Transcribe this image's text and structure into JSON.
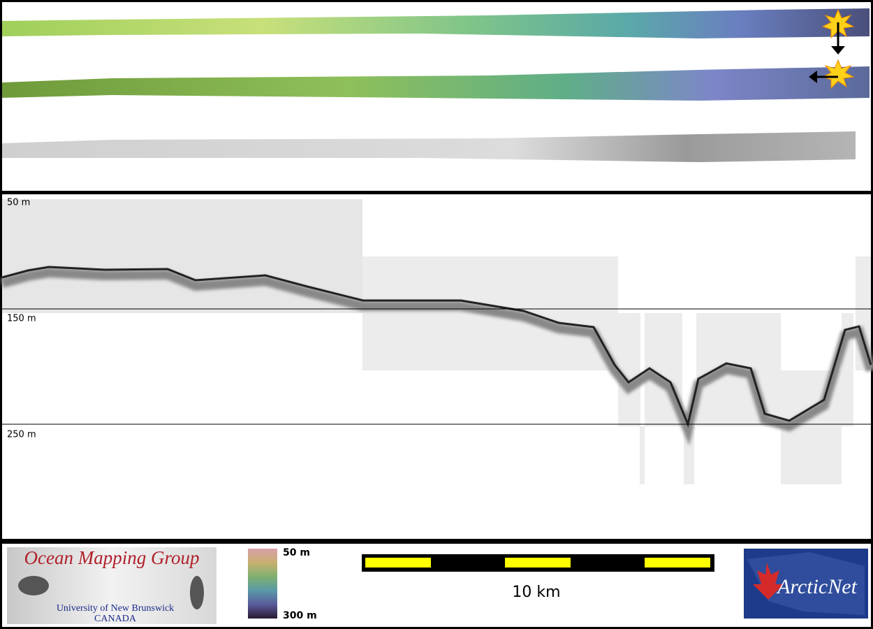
{
  "profile": {
    "depth_labels": [
      "50 m",
      "150 m",
      "250 m"
    ]
  },
  "footer": {
    "logo": {
      "title": "Ocean Mapping Group",
      "university": "University of New Brunswick",
      "country": "CANADA"
    },
    "colorbar": {
      "top_label": "50 m",
      "bottom_label": "300 m"
    },
    "scale_bar": {
      "label": "10 km"
    },
    "partner_logo": {
      "label": "ArcticNet"
    }
  }
}
